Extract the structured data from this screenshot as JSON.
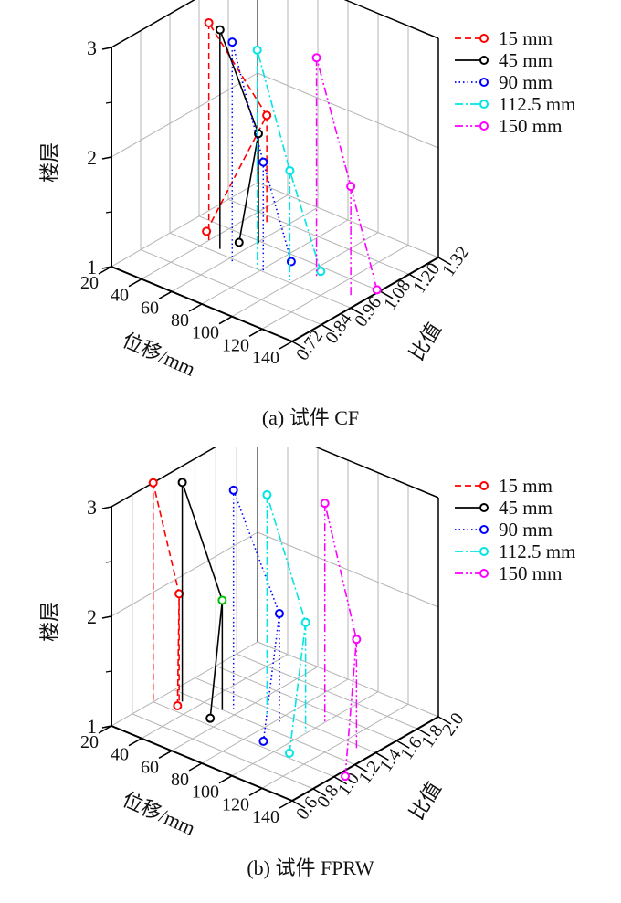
{
  "colors": {
    "15 mm": "#ff0000",
    "45 mm": "#000000",
    "90 mm": "#0000ff",
    "112.5 mm": "#00e5e5",
    "150 mm": "#ff00ff",
    "highlight_marker": "#00c000"
  },
  "chart_data": [
    {
      "type": "line3d",
      "caption": "(a)  试件 CF",
      "xlabel": "位移/mm",
      "ylabel": "比值",
      "zlabel": "楼层",
      "xlim": [
        20,
        140
      ],
      "ylim": [
        0.72,
        1.32
      ],
      "zlim": [
        1,
        3
      ],
      "xticks": [
        "20",
        "40",
        "60",
        "80",
        "100",
        "120",
        "140"
      ],
      "yticks": [
        "0.72",
        "0.84",
        "0.96",
        "1.08",
        "1.20",
        "1.32"
      ],
      "zticks": [
        "1",
        "2",
        "3"
      ],
      "grid": true,
      "legend_position": "right",
      "series": [
        {
          "name": "15 mm",
          "style": "dashed",
          "points": [
            {
              "floor": 1,
              "displacement": 33,
              "ratio": 1.03
            },
            {
              "floor": 2,
              "displacement": 52,
              "ratio": 1.16
            },
            {
              "floor": 3,
              "displacement": 41,
              "ratio": 0.99
            }
          ]
        },
        {
          "name": "45 mm",
          "style": "solid",
          "points": [
            {
              "floor": 1,
              "displacement": 53,
              "ratio": 1.04
            },
            {
              "floor": 2,
              "displacement": 61,
              "ratio": 1.07
            },
            {
              "floor": 3,
              "displacement": 50,
              "ratio": 0.98
            }
          ]
        },
        {
          "name": "90 mm",
          "style": "dotted",
          "points": [
            {
              "floor": 1,
              "displacement": 86,
              "ratio": 1.05
            },
            {
              "floor": 2,
              "displacement": 82,
              "ratio": 0.96
            },
            {
              "floor": 3,
              "displacement": 63,
              "ratio": 0.95
            }
          ]
        },
        {
          "name": "112.5 mm",
          "style": "dashdot",
          "points": [
            {
              "floor": 1,
              "displacement": 104,
              "ratio": 1.06
            },
            {
              "floor": 2,
              "displacement": 98,
              "ratio": 0.97
            },
            {
              "floor": 3,
              "displacement": 78,
              "ratio": 0.96
            }
          ]
        },
        {
          "name": "150 mm",
          "style": "dashdotdot",
          "points": [
            {
              "floor": 1,
              "displacement": 138,
              "ratio": 1.08
            },
            {
              "floor": 2,
              "displacement": 132,
              "ratio": 1.01
            },
            {
              "floor": 3,
              "displacement": 106,
              "ratio": 1.03
            }
          ]
        }
      ]
    },
    {
      "type": "line3d",
      "caption": "(b)  试件 FPRW",
      "xlabel": "位移/mm",
      "ylabel": "比值",
      "zlabel": "楼层",
      "xlim": [
        20,
        140
      ],
      "ylim": [
        0.6,
        2.0
      ],
      "zlim": [
        1,
        3
      ],
      "xticks": [
        "20",
        "40",
        "60",
        "80",
        "100",
        "120",
        "140"
      ],
      "yticks": [
        "0.6",
        "0.8",
        "1.0",
        "1.2",
        "1.4",
        "1.6",
        "1.8",
        "2.0"
      ],
      "zticks": [
        "1",
        "2",
        "3"
      ],
      "grid": true,
      "legend_position": "right",
      "series": [
        {
          "name": "15 mm",
          "style": "dashed",
          "points": [
            {
              "floor": 1,
              "displacement": 32,
              "ratio": 1.06
            },
            {
              "floor": 2,
              "displacement": 31,
              "ratio": 1.09
            },
            {
              "floor": 3,
              "displacement": 20,
              "ratio": 1.0
            }
          ]
        },
        {
          "name": "45 mm",
          "style": "solid",
          "points": [
            {
              "floor": 1,
              "displacement": 53,
              "ratio": 1.07
            },
            {
              "floor": 2,
              "displacement": 52,
              "ratio": 1.2,
              "highlight": true
            },
            {
              "floor": 3,
              "displacement": 31,
              "ratio": 1.12
            }
          ]
        },
        {
          "name": "90 mm",
          "style": "dotted",
          "points": [
            {
              "floor": 1,
              "displacement": 89,
              "ratio": 1.06
            },
            {
              "floor": 2,
              "displacement": 83,
              "ratio": 1.3
            },
            {
              "floor": 3,
              "displacement": 56,
              "ratio": 1.25
            }
          ]
        },
        {
          "name": "112.5 mm",
          "style": "dashdot",
          "points": [
            {
              "floor": 1,
              "displacement": 107,
              "ratio": 1.05
            },
            {
              "floor": 2,
              "displacement": 99,
              "ratio": 1.32
            },
            {
              "floor": 3,
              "displacement": 72,
              "ratio": 1.34
            }
          ]
        },
        {
          "name": "150 mm",
          "style": "dashdotdot",
          "points": [
            {
              "floor": 1,
              "displacement": 144,
              "ratio": 1.05
            },
            {
              "floor": 2,
              "displacement": 130,
              "ratio": 1.36
            },
            {
              "floor": 3,
              "displacement": 100,
              "ratio": 1.49
            }
          ]
        }
      ]
    }
  ]
}
